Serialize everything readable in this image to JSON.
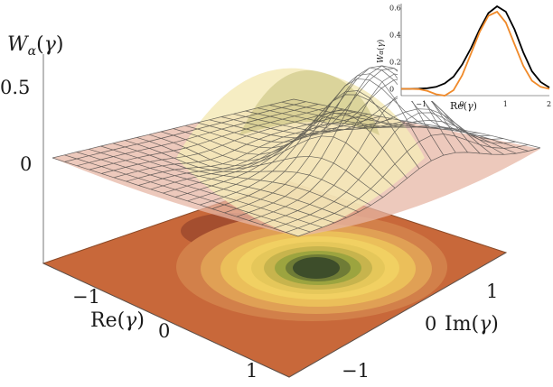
{
  "chart_data": [
    {
      "type": "surface",
      "zlabel": "W_α(γ)",
      "xlabel": "Re(γ)",
      "ylabel": "Im(γ)",
      "x_ticks": [
        "−1",
        "0",
        "1"
      ],
      "y_ticks": [
        "−1",
        "0",
        "1"
      ],
      "z_ticks": [
        "0",
        "0.5"
      ],
      "peak": {
        "re": 0.8,
        "im": 0.3,
        "value": 0.6
      },
      "dip": {
        "re": -0.6,
        "im": -0.3,
        "value": -0.06
      },
      "colors": {
        "surface": "#f2e3b0",
        "floor": "#c8683a",
        "contour_center": "#3d4d2a",
        "contour_mid": "#e8c74a"
      }
    },
    {
      "type": "line",
      "xlabel": "Re(γ)",
      "ylabel": "W_α(γ)",
      "xlim": [
        -1.4,
        2
      ],
      "ylim": [
        -0.05,
        0.63
      ],
      "x_ticks": [
        "−1",
        "0",
        "1",
        "2"
      ],
      "y_ticks": [
        "0",
        "0.2",
        "0.4",
        "0.6"
      ],
      "series": [
        {
          "color": "#000000",
          "x": [
            -1.4,
            -1.2,
            -1.0,
            -0.8,
            -0.6,
            -0.4,
            -0.2,
            0.0,
            0.2,
            0.4,
            0.6,
            0.8,
            1.0,
            1.2,
            1.4,
            1.6,
            1.8,
            2.0
          ],
          "y": [
            0.0,
            0.0,
            0.001,
            0.005,
            0.015,
            0.04,
            0.09,
            0.18,
            0.3,
            0.44,
            0.56,
            0.61,
            0.57,
            0.44,
            0.27,
            0.13,
            0.05,
            0.01
          ]
        },
        {
          "color": "#f08a2a",
          "x": [
            -1.4,
            -1.2,
            -1.0,
            -0.8,
            -0.6,
            -0.4,
            -0.2,
            0.0,
            0.2,
            0.4,
            0.6,
            0.8,
            1.0,
            1.2,
            1.4,
            1.6,
            1.8,
            2.0
          ],
          "y": [
            0.0,
            0.0,
            -0.002,
            -0.015,
            -0.04,
            -0.05,
            -0.01,
            0.1,
            0.26,
            0.42,
            0.54,
            0.57,
            0.49,
            0.33,
            0.17,
            0.06,
            0.015,
            0.0
          ]
        }
      ]
    }
  ]
}
